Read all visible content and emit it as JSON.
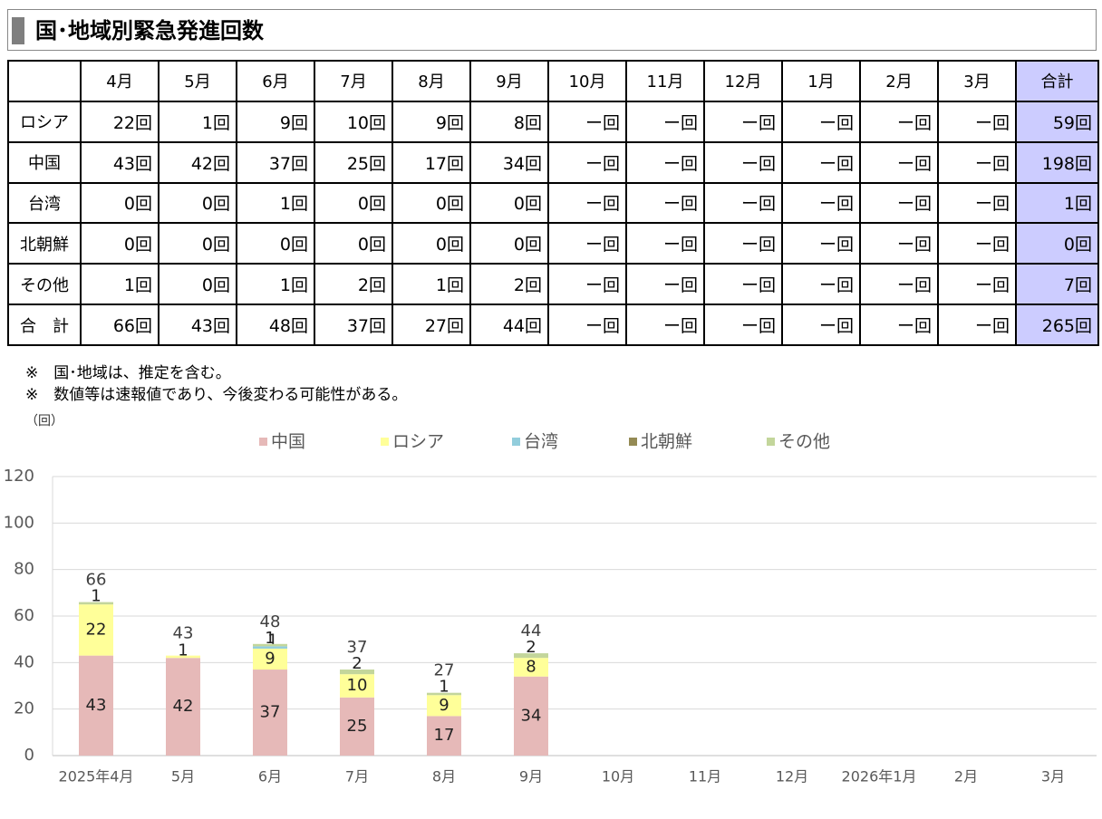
{
  "title": "国･地域別緊急発進回数",
  "table": {
    "headers": [
      "",
      "4月",
      "5月",
      "6月",
      "7月",
      "8月",
      "9月",
      "10月",
      "11月",
      "12月",
      "1月",
      "2月",
      "3月",
      "合計"
    ],
    "rows": [
      {
        "label": "ロシア",
        "cells": [
          "22回",
          "1回",
          "9回",
          "10回",
          "9回",
          "8回",
          "ー回",
          "ー回",
          "ー回",
          "ー回",
          "ー回",
          "ー回",
          "59回"
        ]
      },
      {
        "label": "中国",
        "cells": [
          "43回",
          "42回",
          "37回",
          "25回",
          "17回",
          "34回",
          "ー回",
          "ー回",
          "ー回",
          "ー回",
          "ー回",
          "ー回",
          "198回"
        ]
      },
      {
        "label": "台湾",
        "cells": [
          "0回",
          "0回",
          "1回",
          "0回",
          "0回",
          "0回",
          "ー回",
          "ー回",
          "ー回",
          "ー回",
          "ー回",
          "ー回",
          "1回"
        ]
      },
      {
        "label": "北朝鮮",
        "cells": [
          "0回",
          "0回",
          "0回",
          "0回",
          "0回",
          "0回",
          "ー回",
          "ー回",
          "ー回",
          "ー回",
          "ー回",
          "ー回",
          "0回"
        ]
      },
      {
        "label": "その他",
        "cells": [
          "1回",
          "0回",
          "1回",
          "2回",
          "1回",
          "2回",
          "ー回",
          "ー回",
          "ー回",
          "ー回",
          "ー回",
          "ー回",
          "7回"
        ]
      },
      {
        "label": "合　計",
        "cells": [
          "66回",
          "43回",
          "48回",
          "37回",
          "27回",
          "44回",
          "ー回",
          "ー回",
          "ー回",
          "ー回",
          "ー回",
          "ー回",
          "265回"
        ]
      }
    ]
  },
  "notes": [
    "※　国･地域は、推定を含む。",
    "※　数値等は速報値であり、今後変わる可能性がある。"
  ],
  "unit_label": "（回）",
  "colors": {
    "china": "#e6b9b8",
    "russia": "#ffff99",
    "taiwan": "#92cddc",
    "north_korea": "#948a54",
    "other": "#c3d69b",
    "total_col": "#ccccff"
  },
  "chart_data": {
    "type": "bar",
    "stacked": true,
    "categories": [
      "2025年4月",
      "5月",
      "6月",
      "7月",
      "8月",
      "9月",
      "10月",
      "11月",
      "12月",
      "2026年1月",
      "2月",
      "3月"
    ],
    "series": [
      {
        "name": "中国",
        "values": [
          43,
          42,
          37,
          25,
          17,
          34,
          null,
          null,
          null,
          null,
          null,
          null
        ]
      },
      {
        "name": "ロシア",
        "values": [
          22,
          1,
          9,
          10,
          9,
          8,
          null,
          null,
          null,
          null,
          null,
          null
        ]
      },
      {
        "name": "台湾",
        "values": [
          0,
          0,
          1,
          0,
          0,
          0,
          null,
          null,
          null,
          null,
          null,
          null
        ]
      },
      {
        "name": "北朝鮮",
        "values": [
          0,
          0,
          0,
          0,
          0,
          0,
          null,
          null,
          null,
          null,
          null,
          null
        ]
      },
      {
        "name": "その他",
        "values": [
          1,
          0,
          1,
          2,
          1,
          2,
          null,
          null,
          null,
          null,
          null,
          null
        ]
      }
    ],
    "totals": [
      66,
      43,
      48,
      37,
      27,
      44,
      null,
      null,
      null,
      null,
      null,
      null
    ],
    "ylim": [
      0,
      120
    ],
    "yticks": [
      0,
      20,
      40,
      60,
      80,
      100,
      120
    ],
    "grid": true,
    "legend": "top"
  }
}
